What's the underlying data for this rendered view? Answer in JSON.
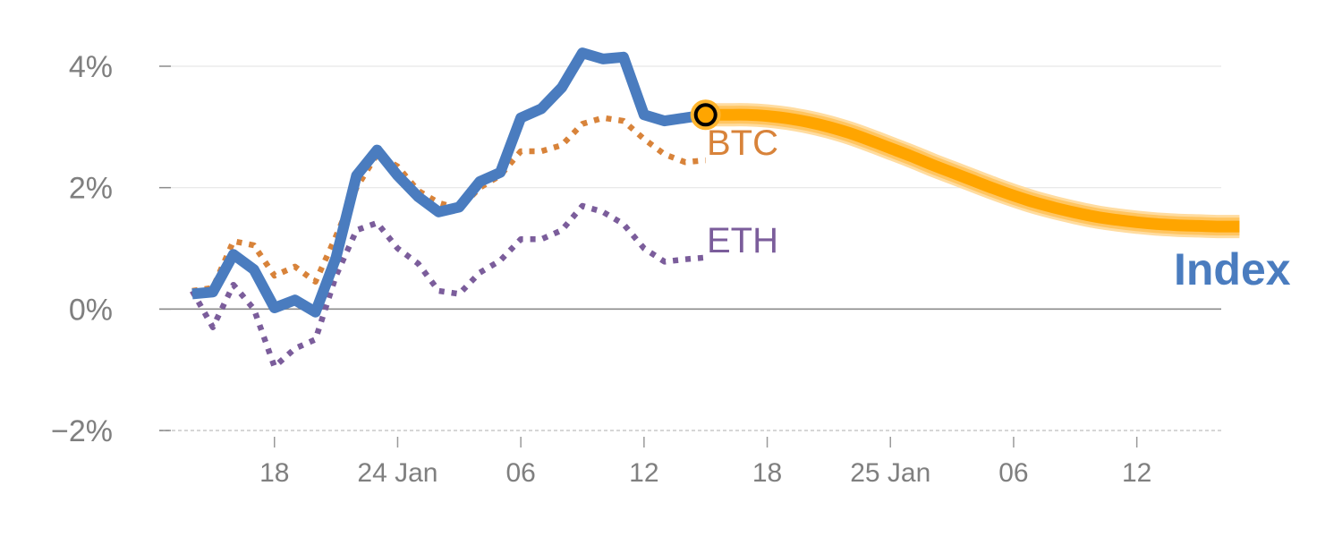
{
  "chart_data": {
    "type": "line",
    "ylim": [
      -2,
      4
    ],
    "yticks": [
      {
        "value": 4,
        "label": "4%"
      },
      {
        "value": 2,
        "label": "2%"
      },
      {
        "value": 0,
        "label": "0%"
      },
      {
        "value": -2,
        "label": "−2%"
      }
    ],
    "xticks": [
      {
        "index": 5,
        "label": "18"
      },
      {
        "index": 11,
        "label": "24 Jan"
      },
      {
        "index": 17,
        "label": "06"
      },
      {
        "index": 23,
        "label": "12"
      },
      {
        "index": 29,
        "label": "18"
      },
      {
        "index": 35,
        "label": "25 Jan"
      },
      {
        "index": 41,
        "label": "06"
      },
      {
        "index": 47,
        "label": "12"
      }
    ],
    "x_index_range": [
      0,
      53
    ],
    "series": [
      {
        "name": "Index",
        "style": "solid-thick",
        "color": "#4a7cbf",
        "x": [
          1,
          2,
          3,
          4,
          5,
          6,
          7,
          8,
          9,
          10,
          11,
          12,
          13,
          14,
          15,
          16,
          17,
          18,
          19,
          20,
          21,
          22,
          23,
          24,
          25,
          26
        ],
        "values": [
          0.25,
          0.28,
          0.9,
          0.65,
          0.02,
          0.15,
          -0.05,
          0.85,
          2.2,
          2.62,
          2.2,
          1.85,
          1.6,
          1.68,
          2.1,
          2.25,
          3.15,
          3.3,
          3.65,
          4.22,
          4.12,
          4.15,
          3.2,
          3.1,
          3.15,
          3.2
        ]
      },
      {
        "name": "BTC",
        "style": "dotted",
        "color": "#d8833a",
        "x": [
          1,
          2,
          3,
          4,
          5,
          6,
          7,
          8,
          9,
          10,
          11,
          12,
          13,
          14,
          15,
          16,
          17,
          18,
          19,
          20,
          21,
          22,
          23,
          24,
          25,
          26
        ],
        "values": [
          0.3,
          0.35,
          1.12,
          1.05,
          0.55,
          0.7,
          0.45,
          1.2,
          2.0,
          2.55,
          2.35,
          1.95,
          1.75,
          1.65,
          2.0,
          2.2,
          2.6,
          2.6,
          2.7,
          3.05,
          3.15,
          3.1,
          2.8,
          2.55,
          2.42,
          2.45
        ]
      },
      {
        "name": "ETH",
        "style": "dotted",
        "color": "#7b5d9b",
        "x": [
          1,
          2,
          3,
          4,
          5,
          6,
          7,
          8,
          9,
          10,
          11,
          12,
          13,
          14,
          15,
          16,
          17,
          18,
          19,
          20,
          21,
          22,
          23,
          24,
          25,
          26
        ],
        "values": [
          0.3,
          -0.3,
          0.4,
          0.0,
          -0.95,
          -0.65,
          -0.5,
          0.55,
          1.3,
          1.42,
          1.0,
          0.75,
          0.3,
          0.25,
          0.6,
          0.8,
          1.15,
          1.15,
          1.3,
          1.7,
          1.6,
          1.4,
          1.0,
          0.78,
          0.82,
          0.85
        ]
      },
      {
        "name": "Index",
        "role": "forecast",
        "style": "highlight-thick",
        "color": "#ffa500",
        "x": [
          26,
          27,
          28,
          29,
          30,
          31,
          32,
          33,
          34,
          35,
          36,
          37,
          38,
          39,
          40,
          41,
          42,
          43,
          44,
          45,
          46,
          47,
          48,
          49,
          50,
          51,
          52
        ],
        "values": [
          3.2,
          3.2,
          3.2,
          3.18,
          3.14,
          3.08,
          3.0,
          2.9,
          2.78,
          2.65,
          2.52,
          2.38,
          2.25,
          2.12,
          1.99,
          1.87,
          1.76,
          1.67,
          1.59,
          1.52,
          1.47,
          1.43,
          1.4,
          1.38,
          1.37,
          1.36,
          1.36
        ]
      }
    ],
    "labels": {
      "btc": "BTC",
      "eth": "ETH",
      "index": "Index"
    },
    "grid": true,
    "legend": "inline end labels"
  }
}
